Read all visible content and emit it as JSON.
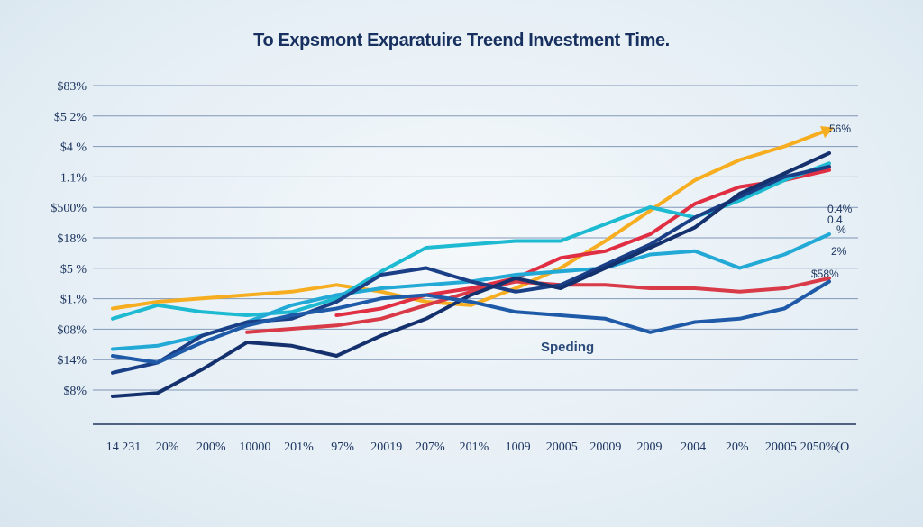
{
  "chart_data": {
    "type": "line",
    "title": "To Expsmont Exparatuire Treend Investment Time.",
    "xlabel": "",
    "ylabel": "",
    "ylim": [
      0,
      10
    ],
    "grid": true,
    "legend": "none",
    "x_tick_labels": [
      "14 231",
      "20%",
      "200%",
      "10000",
      "201%",
      "97%",
      "20019",
      "207%",
      "201%",
      "1009",
      "20005",
      "20009",
      "2009",
      "2004",
      "20%",
      "20005",
      "2050%(O"
    ],
    "y_tick_labels": [
      "$83%",
      "$5 2%",
      "$4 %",
      "1.1%",
      "$500%",
      "$18%",
      "$5 %",
      "$1.%",
      "$08%",
      "$14%",
      "$8%"
    ],
    "annotations": [
      "56%",
      "0.4%",
      "0.4",
      "%",
      "2%",
      "$58%",
      "Speding"
    ],
    "x": [
      0,
      1,
      2,
      3,
      4,
      5,
      6,
      7,
      8,
      9,
      10,
      11,
      12,
      13,
      14,
      15,
      16
    ],
    "series": [
      {
        "color": "#f6ad1f",
        "values": [
          3.4,
          3.6,
          3.7,
          3.8,
          3.9,
          4.1,
          3.9,
          3.6,
          3.5,
          4.0,
          4.6,
          5.4,
          6.3,
          7.2,
          7.8,
          8.2,
          8.7
        ]
      },
      {
        "color": "#e02e42",
        "values": [
          null,
          null,
          null,
          null,
          null,
          3.2,
          3.4,
          3.8,
          4.0,
          4.3,
          4.9,
          5.1,
          5.6,
          6.5,
          7.0,
          7.2,
          7.5
        ]
      },
      {
        "color": "#d83a48",
        "values": [
          null,
          null,
          null,
          2.7,
          2.8,
          2.9,
          3.1,
          3.5,
          3.9,
          4.2,
          4.1,
          4.1,
          4.0,
          4.0,
          3.9,
          4.0,
          4.3
        ]
      },
      {
        "color": "#1dbad2",
        "values": [
          3.1,
          3.5,
          3.3,
          3.2,
          3.3,
          3.7,
          4.5,
          5.2,
          5.3,
          5.4,
          5.4,
          5.9,
          6.4,
          6.1,
          6.6,
          7.2,
          7.7
        ]
      },
      {
        "color": "#23a9d6",
        "values": [
          2.2,
          2.3,
          2.6,
          3.0,
          3.5,
          3.8,
          4.0,
          4.1,
          4.2,
          4.4,
          4.5,
          4.6,
          5.0,
          5.1,
          4.6,
          5.0,
          5.6
        ]
      },
      {
        "color": "#1b3f86",
        "values": [
          1.5,
          1.8,
          2.6,
          3.0,
          3.1,
          3.6,
          4.4,
          4.6,
          4.2,
          3.9,
          4.1,
          4.7,
          5.3,
          6.1,
          6.7,
          7.3,
          7.6
        ]
      },
      {
        "color": "#14316e",
        "values": [
          0.8,
          0.9,
          1.6,
          2.4,
          2.3,
          2.0,
          2.6,
          3.1,
          3.8,
          4.3,
          4.0,
          4.6,
          5.2,
          5.8,
          6.8,
          7.4,
          8.0
        ]
      },
      {
        "color": "#1f5aa8",
        "values": [
          2.0,
          1.8,
          2.4,
          2.9,
          3.2,
          3.4,
          3.7,
          3.8,
          3.6,
          3.3,
          3.2,
          3.1,
          2.7,
          3.0,
          3.1,
          3.4,
          4.2
        ]
      }
    ]
  }
}
